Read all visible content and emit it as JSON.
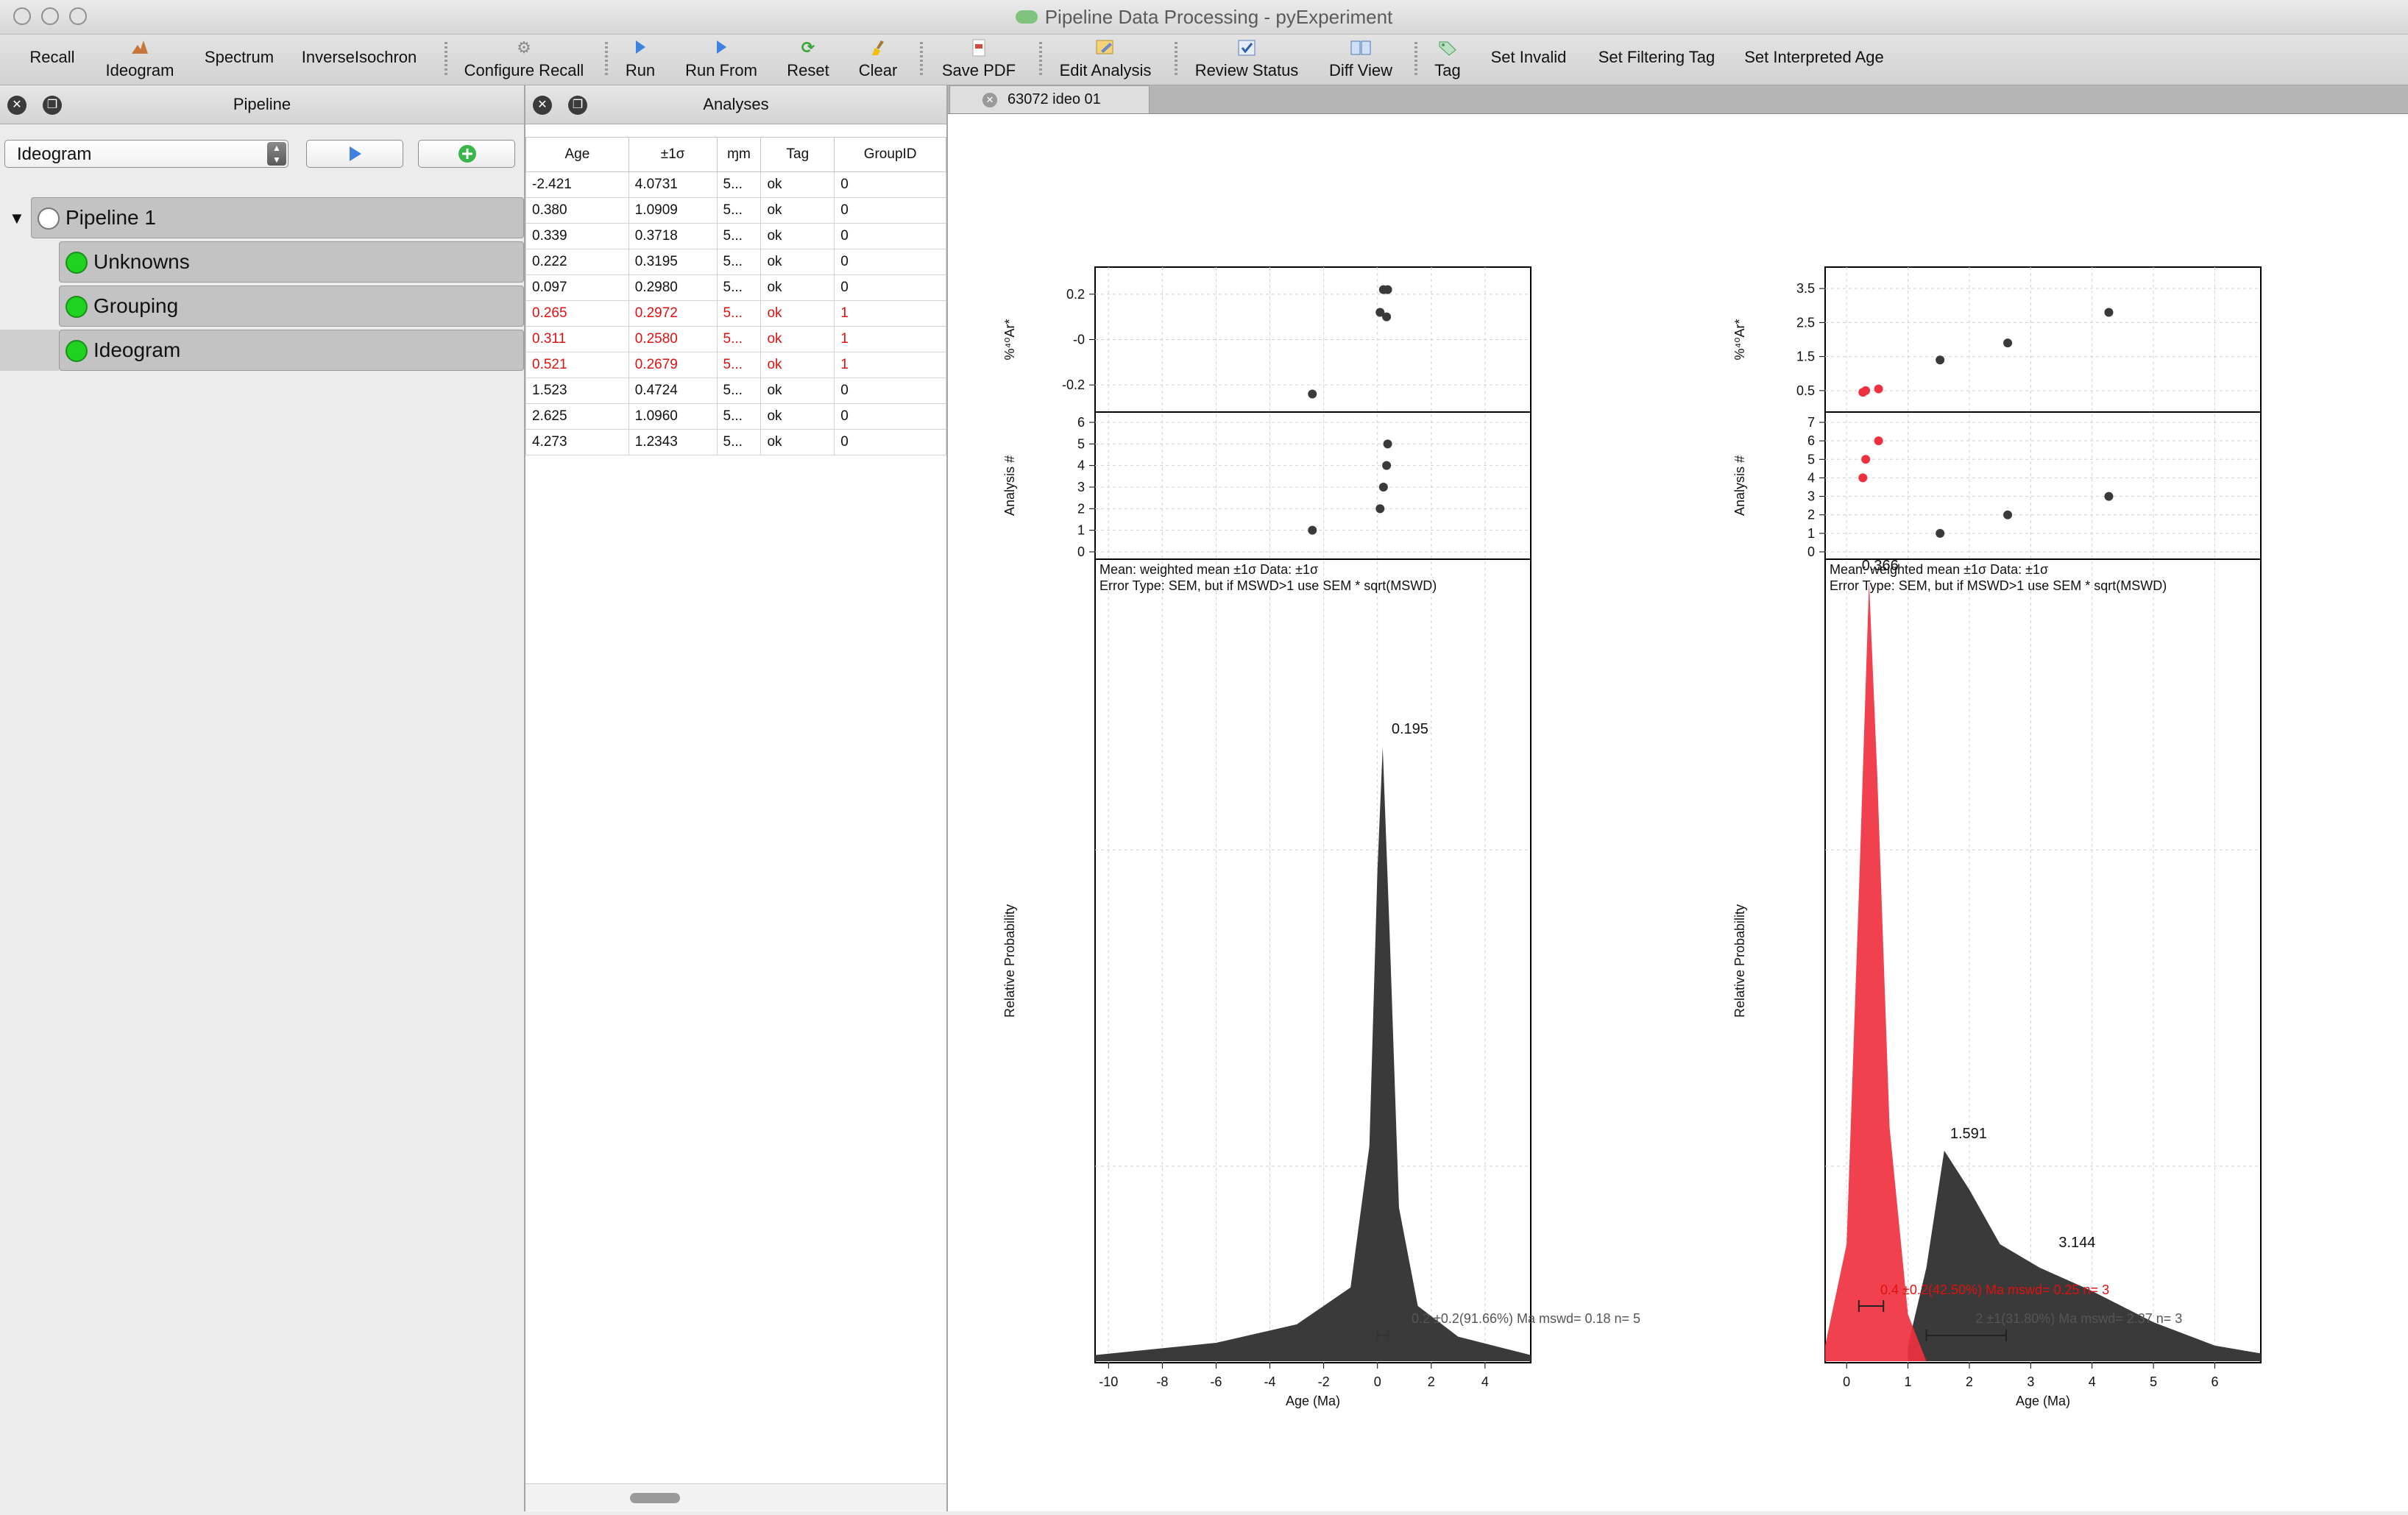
{
  "window": {
    "title": "Pipeline Data Processing - pyExperiment"
  },
  "toolbar": {
    "recall": "Recall",
    "ideogram": "Ideogram",
    "spectrum": "Spectrum",
    "inverse_isochron": "InverseIsochron",
    "configure_recall": "Configure Recall",
    "run": "Run",
    "run_from": "Run From",
    "reset": "Reset",
    "clear": "Clear",
    "save_pdf": "Save PDF",
    "edit_analysis": "Edit Analysis",
    "review_status": "Review Status",
    "diff_view": "Diff View",
    "tag": "Tag",
    "set_invalid": "Set Invalid",
    "set_filtering_tag": "Set Filtering Tag",
    "set_interpreted_age": "Set Interpreted Age"
  },
  "pipeline_panel": {
    "title": "Pipeline",
    "selected": "Ideogram",
    "tree": {
      "root": "Pipeline 1",
      "nodes": [
        "Unknowns",
        "Grouping",
        "Ideogram"
      ]
    }
  },
  "analyses_panel": {
    "title": "Analyses",
    "columns": [
      "Age",
      "±1σ",
      "ɱm",
      "Tag",
      "GroupID"
    ],
    "rows": [
      {
        "age": "-2.421",
        "err": "4.0731",
        "mm": "5...",
        "tag": "ok",
        "group": "0",
        "highlight": false
      },
      {
        "age": "0.380",
        "err": "1.0909",
        "mm": "5...",
        "tag": "ok",
        "group": "0",
        "highlight": false
      },
      {
        "age": "0.339",
        "err": "0.3718",
        "mm": "5...",
        "tag": "ok",
        "group": "0",
        "highlight": false
      },
      {
        "age": "0.222",
        "err": "0.3195",
        "mm": "5...",
        "tag": "ok",
        "group": "0",
        "highlight": false
      },
      {
        "age": "0.097",
        "err": "0.2980",
        "mm": "5...",
        "tag": "ok",
        "group": "0",
        "highlight": false
      },
      {
        "age": "0.265",
        "err": "0.2972",
        "mm": "5...",
        "tag": "ok",
        "group": "1",
        "highlight": true
      },
      {
        "age": "0.311",
        "err": "0.2580",
        "mm": "5...",
        "tag": "ok",
        "group": "1",
        "highlight": true
      },
      {
        "age": "0.521",
        "err": "0.2679",
        "mm": "5...",
        "tag": "ok",
        "group": "1",
        "highlight": true
      },
      {
        "age": "1.523",
        "err": "0.4724",
        "mm": "5...",
        "tag": "ok",
        "group": "0",
        "highlight": false
      },
      {
        "age": "2.625",
        "err": "1.0960",
        "mm": "5...",
        "tag": "ok",
        "group": "0",
        "highlight": false
      },
      {
        "age": "4.273",
        "err": "1.2343",
        "mm": "5...",
        "tag": "ok",
        "group": "0",
        "highlight": false
      }
    ]
  },
  "tabs": [
    {
      "label": "63072 ideo 01"
    }
  ],
  "colors": {
    "group0": "#3a3a3a",
    "group1": "#f0303f",
    "highlight_text": "#e01010",
    "dot_green": "#1fd21f"
  },
  "plots": {
    "left": {
      "ylabel_top": "%⁴⁰Ar*",
      "ylabel_mid": "Analysis #",
      "ylabel_main": "Relative Probability",
      "xlabel": "Age (Ma)",
      "xticks": [
        "-10",
        "-8",
        "-6",
        "-4",
        "-2",
        "0",
        "2",
        "4"
      ],
      "ar_ticks": [
        "0.2",
        "-0",
        "-0.2"
      ],
      "analysis_ticks": [
        "6",
        "5",
        "4",
        "3",
        "2",
        "1",
        "0"
      ],
      "info_line1": "Mean: weighted mean ±1σ Data: ±1σ",
      "info_line2": "Error Type: SEM, but if MSWD>1 use SEM * sqrt(MSWD)",
      "peak_label": "0.195",
      "stats": "0.2 ±0.2(91.66%) Ma mswd= 0.18 n= 5"
    },
    "right": {
      "ylabel_top": "%⁴⁰Ar*",
      "ylabel_mid": "Analysis #",
      "ylabel_main": "Relative Probability",
      "xlabel": "Age (Ma)",
      "xticks": [
        "0",
        "1",
        "2",
        "3",
        "4",
        "5",
        "6"
      ],
      "ar_ticks": [
        "3.5",
        "2.5",
        "1.5",
        "0.5"
      ],
      "analysis_ticks": [
        "7",
        "6",
        "5",
        "4",
        "3",
        "2",
        "1",
        "0"
      ],
      "info_line1": "Mean: weighted mean ±1σ Data: ±1σ",
      "info_line2": "Error Type: SEM, but if MSWD>1 use SEM * sqrt(MSWD)",
      "peak_label_red": "0.366",
      "peak_label_1": "1.591",
      "peak_label_2": "3.144",
      "stats_red": "0.4 ±0.2(42.50%) Ma mswd= 0.25 n= 3",
      "stats_dark": "2 ±1(31.80%) Ma mswd= 2.37 n= 3"
    }
  },
  "chart_data": [
    {
      "type": "scatter",
      "panel": "left-ar",
      "ylabel": "%⁴⁰Ar*",
      "ylim": [
        -0.3,
        0.3
      ],
      "x": [
        -2.421,
        0.38,
        0.339,
        0.222,
        0.097
      ],
      "y": [
        -0.24,
        0.22,
        0.1,
        0.22,
        0.12
      ]
    },
    {
      "type": "scatter",
      "panel": "left-analysis",
      "ylabel": "Analysis #",
      "ylim": [
        0,
        6
      ],
      "x": [
        -2.421,
        0.097,
        0.222,
        0.339,
        0.38
      ],
      "y": [
        1,
        2,
        3,
        4,
        5
      ]
    },
    {
      "type": "area",
      "panel": "left-ideogram",
      "xlabel": "Age (Ma)",
      "ylabel": "Relative Probability",
      "xlim": [
        -10.5,
        5.7
      ],
      "series": [
        {
          "values": [
            [
              -10.5,
              0.01
            ],
            [
              -6,
              0.03
            ],
            [
              -3,
              0.06
            ],
            [
              -1,
              0.12
            ],
            [
              -0.3,
              0.35
            ],
            [
              0,
              0.8
            ],
            [
              0.195,
              1.0
            ],
            [
              0.45,
              0.7
            ],
            [
              0.8,
              0.25
            ],
            [
              1.5,
              0.09
            ],
            [
              3,
              0.04
            ],
            [
              5.7,
              0.01
            ]
          ]
        }
      ],
      "peak": 0.195
    },
    {
      "type": "scatter",
      "panel": "right-ar",
      "ylabel": "%⁴⁰Ar*",
      "ylim": [
        0,
        4
      ],
      "series": [
        {
          "x": [
            1.523,
            2.625,
            4.273
          ],
          "y": [
            1.4,
            1.9,
            2.8
          ]
        },
        {
          "x": [
            0.265,
            0.311,
            0.521
          ],
          "y": [
            0.45,
            0.5,
            0.55
          ]
        }
      ]
    },
    {
      "type": "scatter",
      "panel": "right-analysis",
      "ylabel": "Analysis #",
      "ylim": [
        0,
        7
      ],
      "series": [
        {
          "x": [
            1.523,
            2.625,
            4.273
          ],
          "y": [
            1,
            2,
            3
          ]
        },
        {
          "x": [
            0.265,
            0.311,
            0.521
          ],
          "y": [
            4,
            5,
            6
          ]
        }
      ]
    },
    {
      "type": "area",
      "panel": "right-ideogram",
      "xlabel": "Age (Ma)",
      "ylabel": "Relative Probability",
      "xlim": [
        -0.35,
        6.75
      ],
      "series": [
        {
          "values": [
            [
              -0.35,
              0.02
            ],
            [
              0,
              0.15
            ],
            [
              0.2,
              0.6
            ],
            [
              0.366,
              1.0
            ],
            [
              0.5,
              0.75
            ],
            [
              0.7,
              0.3
            ],
            [
              1.0,
              0.06
            ],
            [
              1.3,
              0.0
            ]
          ]
        },
        {
          "values": [
            [
              1.0,
              0.02
            ],
            [
              1.3,
              0.12
            ],
            [
              1.591,
              0.27
            ],
            [
              2.0,
              0.22
            ],
            [
              2.5,
              0.15
            ],
            [
              3.144,
              0.12
            ],
            [
              4,
              0.09
            ],
            [
              5,
              0.05
            ],
            [
              6,
              0.02
            ],
            [
              6.75,
              0.01
            ]
          ]
        }
      ],
      "peaks": [
        0.366,
        1.591,
        3.144
      ]
    }
  ]
}
